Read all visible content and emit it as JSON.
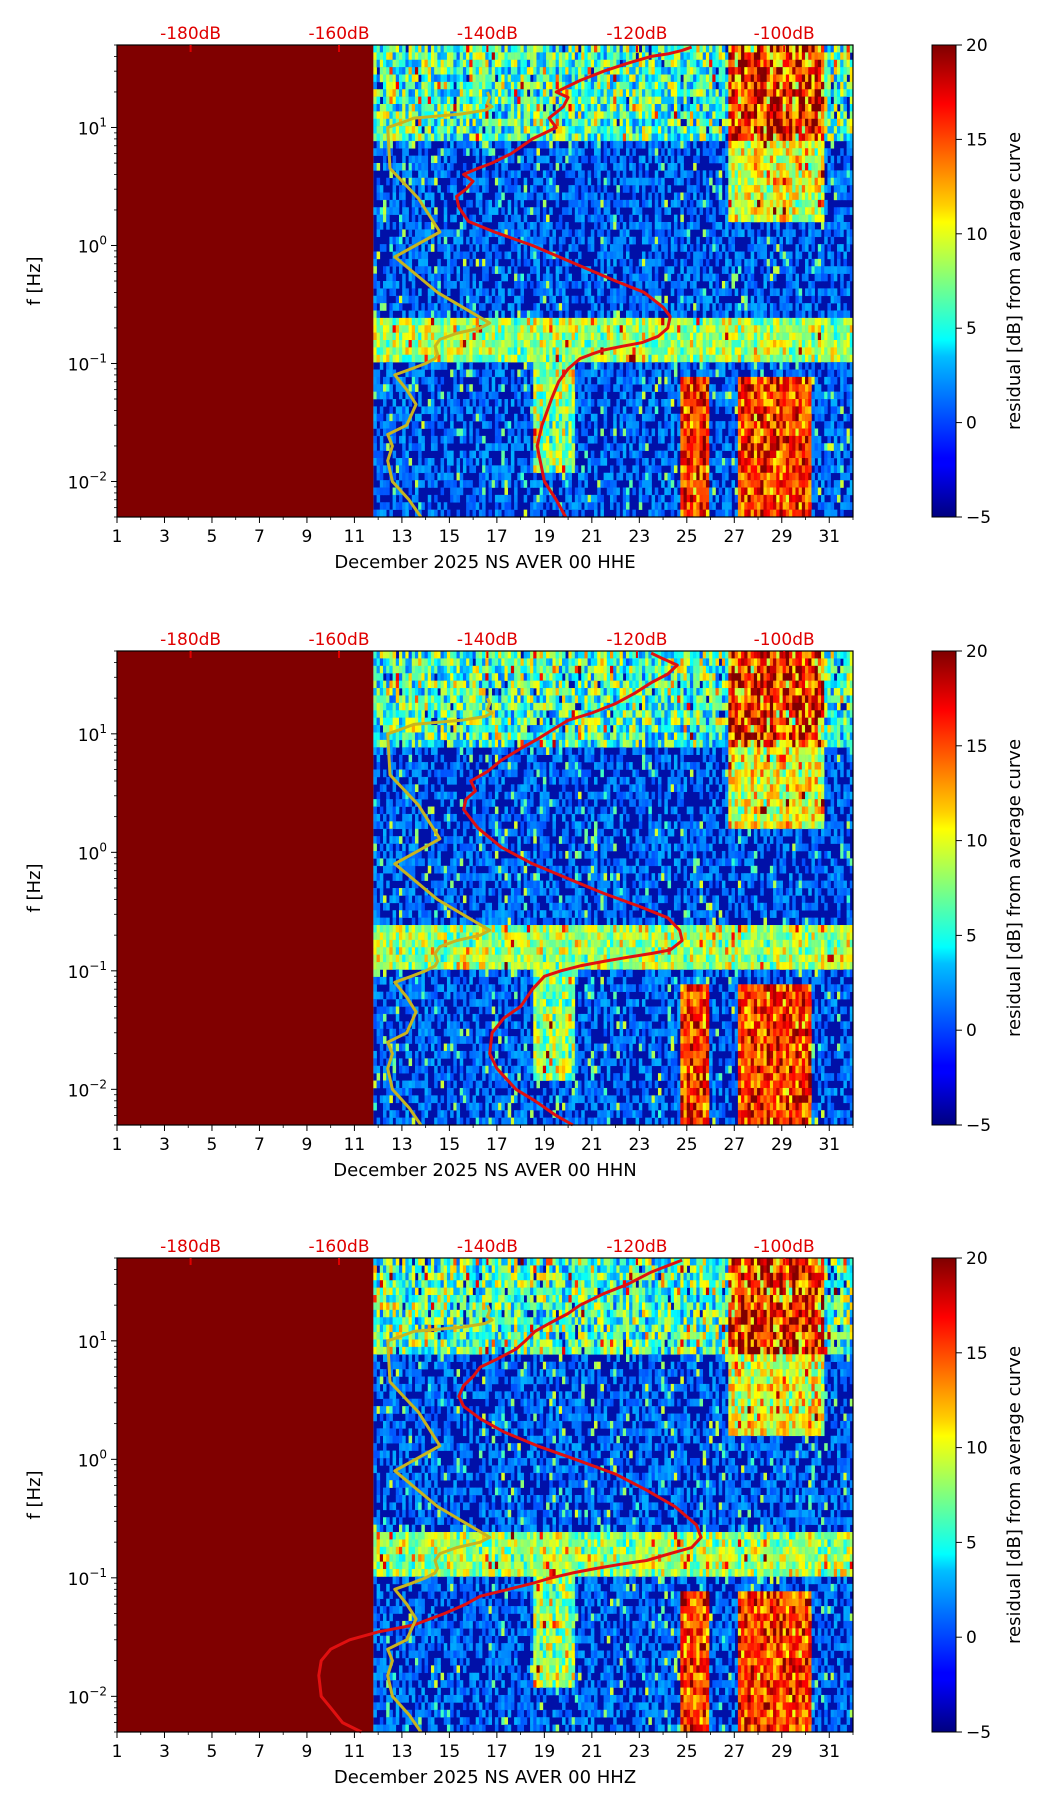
{
  "colors": {
    "saturated_fill": "#800000",
    "median_curve": "#e01010",
    "noise_model": "#c8b41e",
    "db_axis": "#e00000"
  },
  "chart_data": [
    {
      "type": "heatmap",
      "xlabel": "December 2025 NS AVER 00 HHE",
      "ylabel": "f [Hz]",
      "x_ticks": [
        "1",
        "3",
        "5",
        "7",
        "9",
        "11",
        "13",
        "15",
        "17",
        "19",
        "21",
        "23",
        "25",
        "27",
        "29",
        "31"
      ],
      "xlim": [
        1,
        32
      ],
      "ylim": [
        0.005,
        50
      ],
      "y_scale": "log",
      "y_ticks": [
        "10^-2",
        "10^-1",
        "10^0",
        "10^1"
      ],
      "top_ticks": [
        "-180dB",
        "-160dB",
        "-140dB",
        "-120dB",
        "-100dB"
      ],
      "colorbar": {
        "label": "residual [dB] from average curve",
        "min": -5,
        "max": 20,
        "ticks": [
          "−5",
          "0",
          "5",
          "10",
          "15",
          "20"
        ]
      },
      "data_start_day": 11.8,
      "saturated_region": [
        1,
        11.8
      ],
      "series": [
        {
          "x": [
            19.9,
            19.5,
            19.0,
            18.7,
            18.9,
            19.3,
            19.6,
            20.0,
            20.5,
            21.0,
            21.5,
            22.3,
            23.1,
            23.8,
            24.2,
            24.3,
            24.0,
            23.2,
            22.0,
            20.3,
            18.5,
            16.9,
            15.8,
            15.4,
            15.3,
            15.7,
            16.0,
            15.6,
            16.2,
            16.8,
            17.6,
            18.5,
            19.5,
            19.2,
            19.8,
            20.0,
            19.5,
            20.5,
            21.5,
            22.5,
            23.5,
            24.2,
            24.8,
            25.2
          ],
          "y": [
            0.005,
            0.007,
            0.01,
            0.02,
            0.03,
            0.05,
            0.07,
            0.09,
            0.11,
            0.12,
            0.13,
            0.14,
            0.15,
            0.17,
            0.2,
            0.25,
            0.3,
            0.4,
            0.5,
            0.7,
            1.0,
            1.3,
            1.6,
            2.1,
            2.6,
            3.0,
            3.5,
            4.0,
            4.5,
            5.0,
            6.0,
            8.0,
            10.0,
            12.0,
            15.0,
            18.0,
            20.0,
            25.0,
            30.0,
            35.0,
            40.0,
            42.0,
            45.0,
            48.0
          ]
        },
        {
          "x": [
            13.8,
            13.3,
            12.6,
            12.4,
            12.6,
            12.4,
            13.2,
            13.6,
            13.2,
            12.7,
            13.4,
            14.0,
            14.4,
            14.5,
            14.4,
            14.6,
            15.3,
            16.3,
            16.7,
            14.5,
            12.7,
            14.6,
            13.7,
            12.5,
            12.4,
            13.0,
            13.5,
            15.5,
            16.5,
            16.8,
            16.6,
            16.7,
            16.6
          ],
          "y": [
            0.005,
            0.007,
            0.01,
            0.015,
            0.02,
            0.025,
            0.03,
            0.045,
            0.06,
            0.08,
            0.09,
            0.1,
            0.11,
            0.12,
            0.14,
            0.16,
            0.18,
            0.2,
            0.22,
            0.4,
            0.8,
            1.3,
            2.5,
            4.5,
            10.0,
            11.0,
            12.0,
            13.0,
            14.0,
            15.0,
            16.0,
            18.0,
            20.0
          ]
        }
      ]
    },
    {
      "type": "heatmap",
      "xlabel": "December 2025 NS AVER 00 HHN",
      "ylabel": "f [Hz]",
      "x_ticks": [
        "1",
        "3",
        "5",
        "7",
        "9",
        "11",
        "13",
        "15",
        "17",
        "19",
        "21",
        "23",
        "25",
        "27",
        "29",
        "31"
      ],
      "xlim": [
        1,
        32
      ],
      "ylim": [
        0.005,
        50
      ],
      "y_scale": "log",
      "y_ticks": [
        "10^-2",
        "10^-1",
        "10^0",
        "10^1"
      ],
      "top_ticks": [
        "-180dB",
        "-160dB",
        "-140dB",
        "-120dB",
        "-100dB"
      ],
      "colorbar": {
        "label": "residual [dB] from average curve",
        "min": -5,
        "max": 20,
        "ticks": [
          "−5",
          "0",
          "5",
          "10",
          "15",
          "20"
        ]
      },
      "data_start_day": 11.8,
      "saturated_region": [
        1,
        11.8
      ],
      "series": [
        {
          "x": [
            20.2,
            19.5,
            18.6,
            17.8,
            17.0,
            16.7,
            16.8,
            17.3,
            18.0,
            18.5,
            19.0,
            19.7,
            20.5,
            21.5,
            22.5,
            23.5,
            24.3,
            24.8,
            24.7,
            24.2,
            23.0,
            21.5,
            20.0,
            18.5,
            17.2,
            16.2,
            15.6,
            15.7,
            16.1,
            15.9,
            16.6,
            17.2,
            18.0,
            18.7,
            19.4,
            20.0,
            21.0,
            22.0,
            22.8,
            23.5,
            24.2,
            24.6,
            24.0,
            23.5
          ],
          "y": [
            0.005,
            0.006,
            0.008,
            0.01,
            0.015,
            0.02,
            0.03,
            0.04,
            0.05,
            0.07,
            0.09,
            0.1,
            0.11,
            0.12,
            0.13,
            0.14,
            0.15,
            0.18,
            0.22,
            0.28,
            0.35,
            0.45,
            0.6,
            0.8,
            1.1,
            1.6,
            2.3,
            2.8,
            3.3,
            4.0,
            4.8,
            6.0,
            7.5,
            9.0,
            11.0,
            13.0,
            15.0,
            18.0,
            22.0,
            27.0,
            32.0,
            38.0,
            43.0,
            48.0
          ]
        },
        {
          "x": [
            13.8,
            13.3,
            12.6,
            12.4,
            12.6,
            12.4,
            13.2,
            13.6,
            13.2,
            12.7,
            13.4,
            14.0,
            14.4,
            14.5,
            14.4,
            14.6,
            15.3,
            16.3,
            16.7,
            14.5,
            12.7,
            14.6,
            13.7,
            12.5,
            12.4,
            13.0,
            13.5,
            15.5,
            16.5,
            16.8,
            16.6,
            16.7,
            16.6
          ],
          "y": [
            0.005,
            0.007,
            0.01,
            0.015,
            0.02,
            0.025,
            0.03,
            0.045,
            0.06,
            0.08,
            0.09,
            0.1,
            0.11,
            0.12,
            0.14,
            0.16,
            0.18,
            0.2,
            0.22,
            0.4,
            0.8,
            1.3,
            2.5,
            4.5,
            10.0,
            11.0,
            12.0,
            13.0,
            14.0,
            15.0,
            16.0,
            18.0,
            20.0
          ]
        }
      ]
    },
    {
      "type": "heatmap",
      "xlabel": "December 2025 NS AVER 00 HHZ",
      "ylabel": "f [Hz]",
      "x_ticks": [
        "1",
        "3",
        "5",
        "7",
        "9",
        "11",
        "13",
        "15",
        "17",
        "19",
        "21",
        "23",
        "25",
        "27",
        "29",
        "31"
      ],
      "xlim": [
        1,
        32
      ],
      "ylim": [
        0.005,
        50
      ],
      "y_scale": "log",
      "y_ticks": [
        "10^-2",
        "10^-1",
        "10^0",
        "10^1"
      ],
      "top_ticks": [
        "-180dB",
        "-160dB",
        "-140dB",
        "-120dB",
        "-100dB"
      ],
      "colorbar": {
        "label": "residual [dB] from average curve",
        "min": -5,
        "max": 20,
        "ticks": [
          "−5",
          "0",
          "5",
          "10",
          "15",
          "20"
        ]
      },
      "data_start_day": 11.8,
      "saturated_region": [
        1,
        11.8
      ],
      "series": [
        {
          "x": [
            11.3,
            10.5,
            10.0,
            9.6,
            9.5,
            9.6,
            10.0,
            10.8,
            12.0,
            13.5,
            14.8,
            15.7,
            16.3,
            17.5,
            18.5,
            19.3,
            20.2,
            21.2,
            22.2,
            23.3,
            24.3,
            25.2,
            25.6,
            25.4,
            24.5,
            23.3,
            22.0,
            20.3,
            18.7,
            17.3,
            16.3,
            15.6,
            15.4,
            15.6,
            16.0,
            16.3,
            17.0,
            17.8,
            18.2,
            18.6,
            19.2,
            20.0,
            20.5,
            21.5,
            22.5,
            23.5,
            24.8
          ],
          "y": [
            0.005,
            0.006,
            0.008,
            0.01,
            0.015,
            0.02,
            0.025,
            0.03,
            0.035,
            0.04,
            0.05,
            0.06,
            0.07,
            0.08,
            0.09,
            0.1,
            0.11,
            0.12,
            0.13,
            0.14,
            0.16,
            0.18,
            0.22,
            0.28,
            0.4,
            0.55,
            0.75,
            1.0,
            1.3,
            1.7,
            2.2,
            2.8,
            3.4,
            4.2,
            5.0,
            6.0,
            7.0,
            8.5,
            10.0,
            12.0,
            14.0,
            17.0,
            20.0,
            25.0,
            30.0,
            38.0,
            48.0
          ]
        },
        {
          "x": [
            13.8,
            13.3,
            12.6,
            12.4,
            12.6,
            12.4,
            13.2,
            13.6,
            13.2,
            12.7,
            13.4,
            14.0,
            14.4,
            14.5,
            14.4,
            14.6,
            15.3,
            16.3,
            16.7,
            14.5,
            12.7,
            14.6,
            13.7,
            12.5,
            12.4,
            13.0,
            13.5,
            15.5,
            16.5,
            16.8,
            16.6,
            16.7,
            16.6
          ],
          "y": [
            0.005,
            0.007,
            0.01,
            0.015,
            0.02,
            0.025,
            0.03,
            0.045,
            0.06,
            0.08,
            0.09,
            0.1,
            0.11,
            0.12,
            0.14,
            0.16,
            0.18,
            0.2,
            0.22,
            0.4,
            0.8,
            1.3,
            2.5,
            4.5,
            10.0,
            11.0,
            12.0,
            13.0,
            14.0,
            15.0,
            16.0,
            18.0,
            20.0
          ]
        }
      ]
    }
  ]
}
